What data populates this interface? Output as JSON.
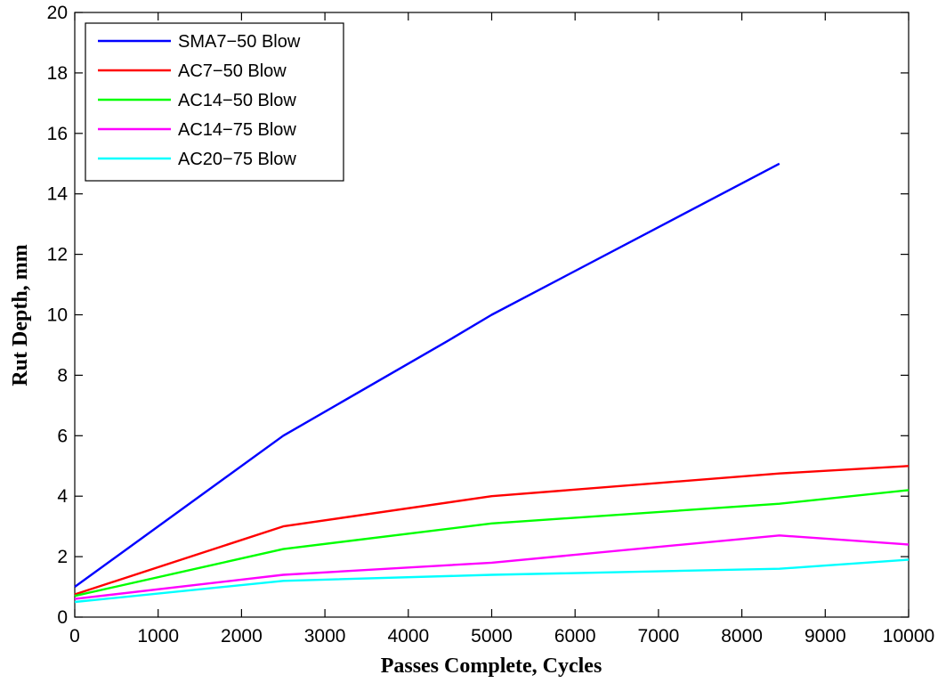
{
  "chart_data": {
    "type": "line",
    "title": "",
    "xlabel": "Passes Complete, Cycles",
    "ylabel": "Rut Depth, mm",
    "xlim": [
      0,
      10000
    ],
    "ylim": [
      0,
      20
    ],
    "xticks": [
      0,
      1000,
      2000,
      3000,
      4000,
      5000,
      6000,
      7000,
      8000,
      9000,
      10000
    ],
    "yticks": [
      0,
      2,
      4,
      6,
      8,
      10,
      12,
      14,
      16,
      18,
      20
    ],
    "grid": false,
    "legend_position": "top-left",
    "series": [
      {
        "name": "SMA7−50 Blow",
        "color": "#0000ff",
        "x": [
          0,
          2500,
          4450,
          5000,
          8450
        ],
        "y": [
          1.0,
          6.0,
          9.1,
          10.0,
          15.0
        ]
      },
      {
        "name": "AC7−50 Blow",
        "color": "#ff0000",
        "x": [
          0,
          2500,
          5000,
          8450,
          10000
        ],
        "y": [
          0.75,
          3.0,
          4.0,
          4.75,
          5.0
        ]
      },
      {
        "name": "AC14−50 Blow",
        "color": "#00ff00",
        "x": [
          0,
          2500,
          5000,
          8450,
          10000
        ],
        "y": [
          0.7,
          2.25,
          3.1,
          3.75,
          4.2
        ]
      },
      {
        "name": "AC14−75 Blow",
        "color": "#ff00ff",
        "x": [
          0,
          2500,
          5000,
          8450,
          10000
        ],
        "y": [
          0.6,
          1.4,
          1.8,
          2.7,
          2.4
        ]
      },
      {
        "name": "AC20−75 Blow",
        "color": "#00ffff",
        "x": [
          0,
          2500,
          5000,
          8450,
          10000
        ],
        "y": [
          0.5,
          1.2,
          1.4,
          1.6,
          1.9
        ]
      }
    ]
  }
}
